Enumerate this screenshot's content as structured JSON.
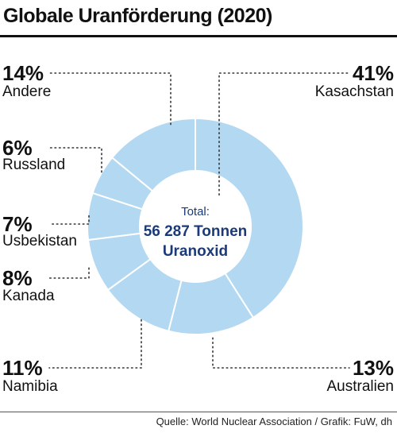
{
  "header": {
    "title": "Globale Uranförderung (2020)"
  },
  "footer": {
    "source": "Quelle: World Nuclear Association / Grafik: FuW, dh"
  },
  "center": {
    "label": "Total:",
    "value_line1": "56 287 Tonnen",
    "value_line2": "Uranoxid"
  },
  "colors": {
    "slice_fill": "#b3d8f1",
    "slice_stroke": "#ffffff",
    "text": "#111111",
    "center_text": "#1c3a78"
  },
  "chart_data": {
    "type": "pie",
    "title": "Globale Uranförderung (2020)",
    "unit": "%",
    "slices": [
      {
        "label": "Kasachstan",
        "value": 41,
        "display": "41%"
      },
      {
        "label": "Australien",
        "value": 13,
        "display": "13%"
      },
      {
        "label": "Namibia",
        "value": 11,
        "display": "11%"
      },
      {
        "label": "Kanada",
        "value": 8,
        "display": "8%"
      },
      {
        "label": "Usbekistan",
        "value": 7,
        "display": "7%"
      },
      {
        "label": "Russland",
        "value": 6,
        "display": "6%"
      },
      {
        "label": "Andere",
        "value": 14,
        "display": "14%"
      }
    ]
  }
}
